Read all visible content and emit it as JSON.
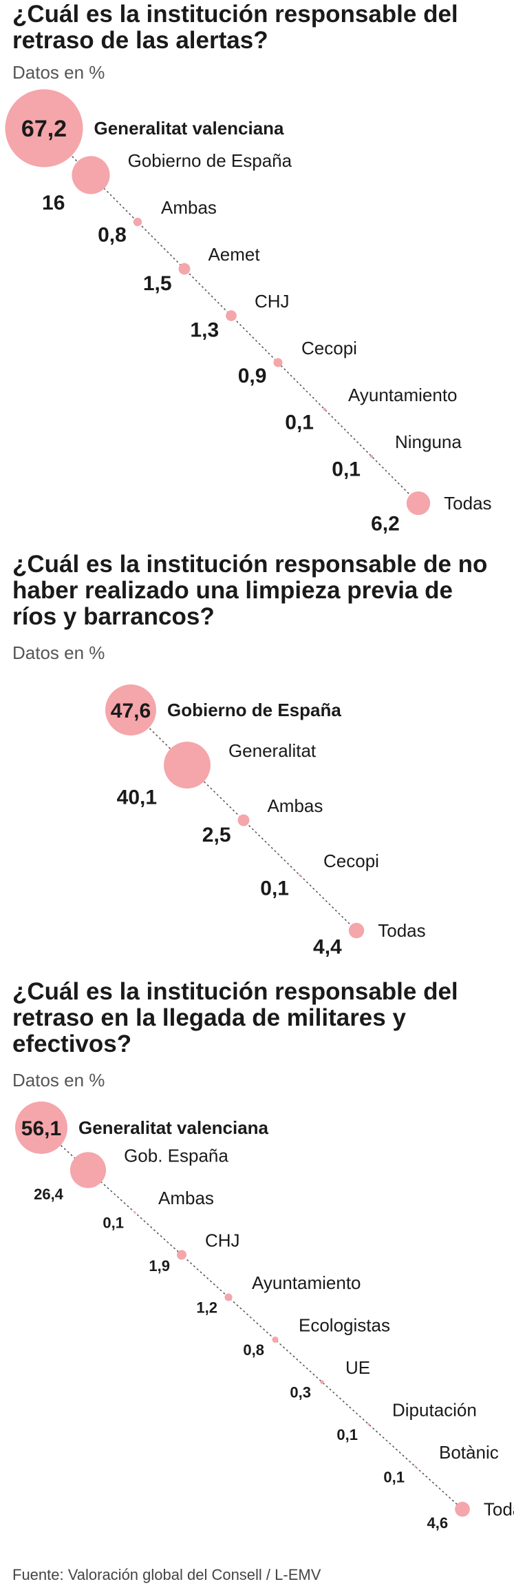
{
  "source": "Fuente: Valoración global del Consell / L-EMV",
  "chart_data": [
    {
      "type": "bubble",
      "title": "¿Cuál es la institución responsable del retraso de las alertas?",
      "subtitle": "Datos en %",
      "categories": [
        "Generalitat valenciana",
        "Gobierno de España",
        "Ambas",
        "Aemet",
        "CHJ",
        "Cecopi",
        "Ayuntamiento",
        "Ninguna",
        "Todas"
      ],
      "values": [
        67.2,
        16,
        0.8,
        1.5,
        1.3,
        0.9,
        0.1,
        0.1,
        6.2
      ],
      "value_labels": [
        "67,2",
        "16",
        "0,8",
        "1,5",
        "1,3",
        "0,9",
        "0,1",
        "0,1",
        "6,2"
      ],
      "color": "#f4a6ab"
    },
    {
      "type": "bubble",
      "title": "¿Cuál es la institución responsable de no haber realizado una limpieza previa de ríos y barrancos?",
      "subtitle": "Datos en %",
      "categories": [
        "Gobierno de España",
        "Generalitat",
        "Ambas",
        "Cecopi",
        "Todas"
      ],
      "values": [
        47.6,
        40.1,
        2.5,
        0.1,
        4.4
      ],
      "value_labels": [
        "47,6",
        "40,1",
        "2,5",
        "0,1",
        "4,4"
      ],
      "color": "#f4a6ab"
    },
    {
      "type": "bubble",
      "title": "¿Cuál es la institución responsable del retraso en la llegada de militares y efectivos?",
      "subtitle": "Datos en %",
      "categories": [
        "Generalitat valenciana",
        "Gob. España",
        "Ambas",
        "CHJ",
        "Ayuntamiento",
        "Ecologistas",
        "UE",
        "Diputación",
        "Botànic",
        "Todas"
      ],
      "values": [
        56.1,
        26.4,
        0.1,
        1.9,
        1.2,
        0.8,
        0.3,
        0.1,
        0.1,
        4.6
      ],
      "value_labels": [
        "56,1",
        "26,4",
        "0,1",
        "1,9",
        "1,2",
        "0,8",
        "0,3",
        "0,1",
        "0,1",
        "4,6"
      ],
      "color": "#f4a6ab"
    }
  ]
}
